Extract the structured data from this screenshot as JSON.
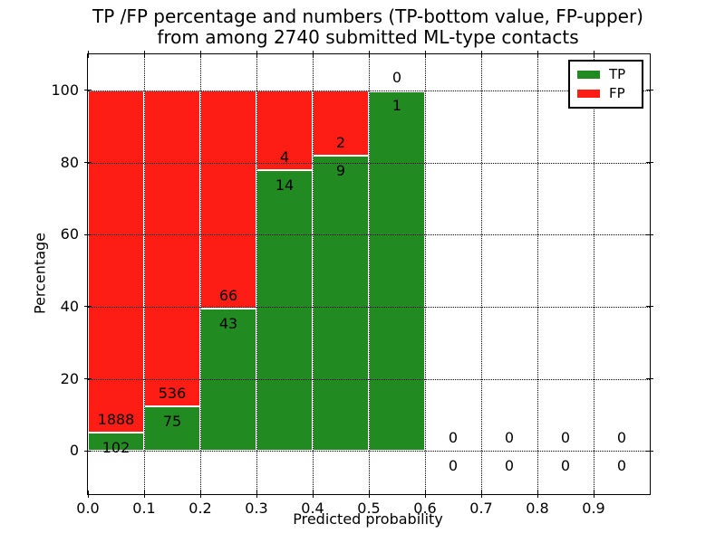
{
  "chart_data": {
    "type": "bar",
    "variant": "stacked-percentage-histogram",
    "title": "TP /FP percentage and numbers (TP-bottom value, FP-upper) from among 2740 submitted ML-type contacts",
    "title_lines": [
      "TP /FP percentage and numbers (TP-bottom value, FP-upper)",
      "from among 2740 submitted ML-type contacts"
    ],
    "xlabel": "Predicted probability",
    "ylabel": "Percentage",
    "total_contacts": 2740,
    "bin_width": 0.1,
    "bin_starts": [
      0.0,
      0.1,
      0.2,
      0.3,
      0.4,
      0.5,
      0.6,
      0.7,
      0.8,
      0.9
    ],
    "series": [
      {
        "name": "TP",
        "color": "#218a21",
        "counts": [
          102,
          75,
          43,
          14,
          9,
          1,
          0,
          0,
          0,
          0
        ]
      },
      {
        "name": "FP",
        "color": "#fd1d15",
        "counts": [
          1888,
          536,
          66,
          4,
          2,
          0,
          0,
          0,
          0,
          0
        ]
      }
    ],
    "tp_percent_per_bin": [
      5.13,
      12.27,
      39.45,
      77.78,
      81.82,
      100,
      null,
      null,
      null,
      null
    ],
    "bar_edge_color": "#ffffff",
    "xlim": [
      0.0,
      1.0
    ],
    "ylim": [
      -12,
      110
    ],
    "xticks": [
      "0.0",
      "0.1",
      "0.2",
      "0.3",
      "0.4",
      "0.5",
      "0.6",
      "0.7",
      "0.8",
      "0.9"
    ],
    "yticks": [
      0,
      20,
      40,
      60,
      80,
      100
    ],
    "grid": "dotted",
    "grid_above_bars": true,
    "legend": {
      "position": "upper-right",
      "entries": [
        {
          "label": "TP",
          "color": "#218a21"
        },
        {
          "label": "FP",
          "color": "#fd1d15"
        }
      ]
    }
  }
}
